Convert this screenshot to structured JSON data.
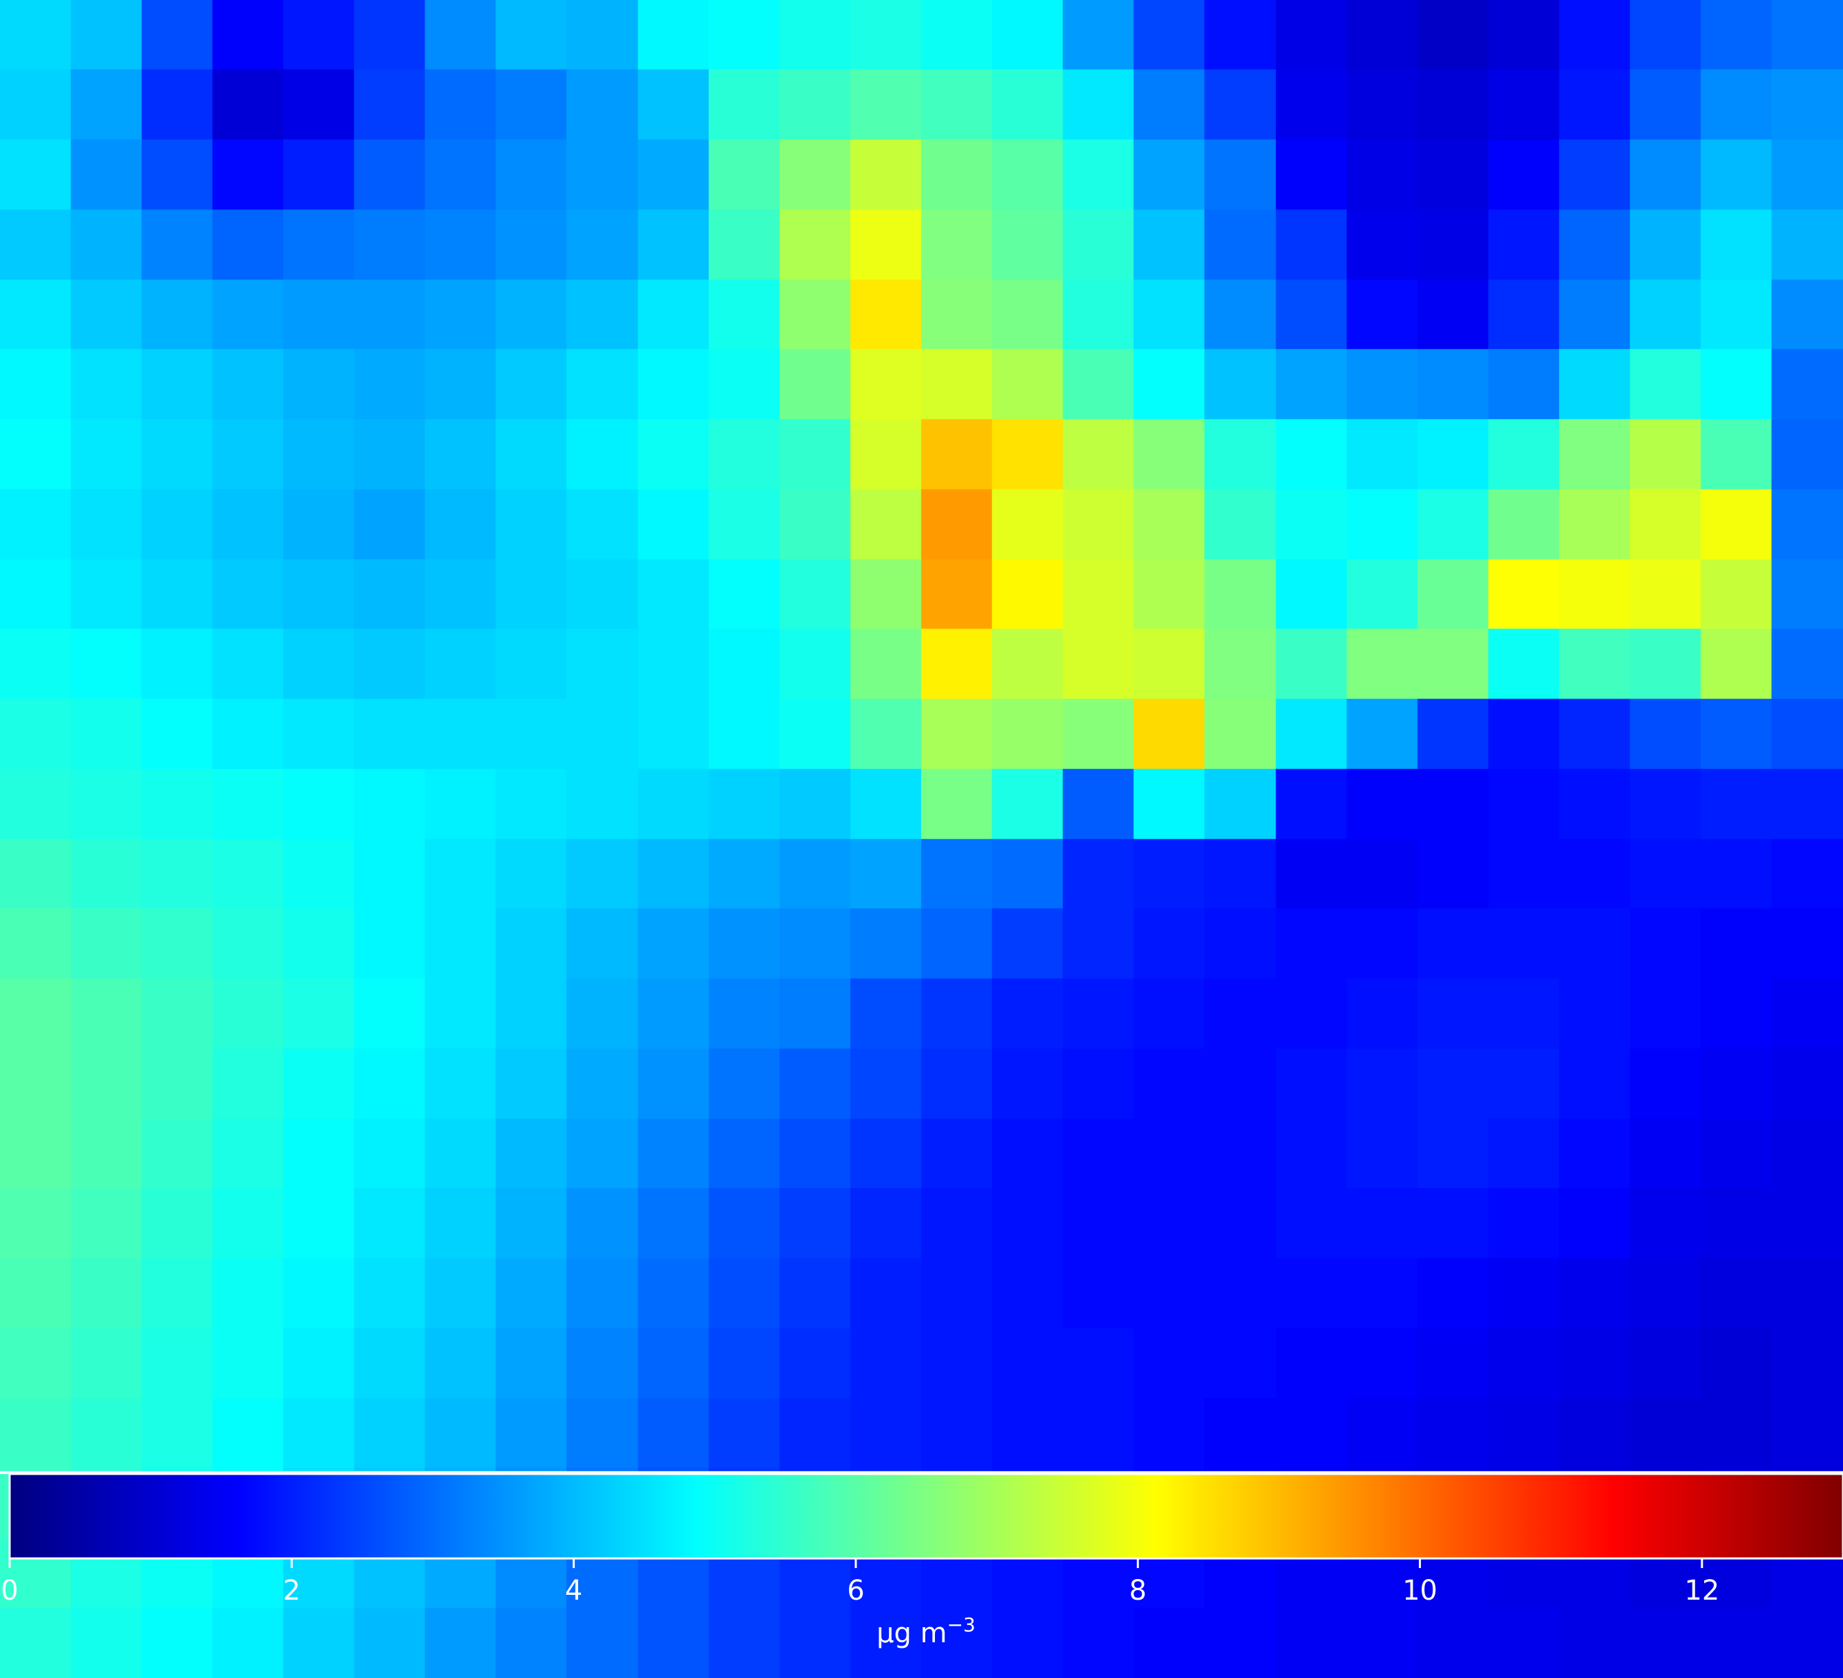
{
  "map": {
    "colormap": "jet",
    "vmin": 0,
    "vmax": 13,
    "grid_note": "grid of sampled concentration values in µg m-3, rows top to bottom",
    "grid": [
      [
        4.4,
        4.1,
        2.6,
        1.6,
        1.9,
        2.3,
        3.4,
        4.0,
        3.9,
        4.8,
        4.9,
        5.1,
        5.2,
        5.0,
        4.8,
        3.6,
        2.5,
        1.8,
        1.3,
        1.1,
        0.9,
        1.1,
        1.8,
        2.5,
        2.9,
        3.1
      ],
      [
        4.3,
        3.7,
        2.2,
        1.1,
        1.3,
        2.4,
        3.0,
        3.2,
        3.6,
        4.1,
        5.4,
        5.6,
        5.9,
        5.7,
        5.4,
        4.6,
        3.2,
        2.4,
        1.4,
        1.2,
        1.1,
        1.3,
        1.9,
        2.8,
        3.4,
        3.5
      ],
      [
        4.5,
        3.5,
        2.6,
        1.7,
        2.0,
        2.8,
        3.1,
        3.4,
        3.6,
        3.8,
        5.8,
        6.6,
        7.4,
        6.3,
        6.0,
        5.2,
        3.7,
        3.1,
        1.6,
        1.3,
        1.2,
        1.6,
        2.4,
        3.4,
        4.0,
        3.6
      ],
      [
        4.2,
        3.9,
        3.3,
        2.9,
        3.1,
        3.2,
        3.3,
        3.5,
        3.7,
        4.1,
        5.6,
        7.1,
        7.9,
        6.5,
        6.1,
        5.4,
        4.1,
        3.0,
        2.3,
        1.4,
        1.3,
        1.9,
        2.9,
        3.9,
        4.5,
        3.9
      ],
      [
        4.6,
        4.2,
        3.9,
        3.7,
        3.6,
        3.6,
        3.7,
        3.9,
        4.1,
        4.6,
        5.1,
        6.7,
        8.4,
        6.6,
        6.4,
        5.3,
        4.5,
        3.4,
        2.6,
        1.7,
        1.5,
        2.2,
        3.2,
        4.3,
        4.6,
        3.4
      ],
      [
        4.8,
        4.5,
        4.3,
        4.1,
        3.9,
        3.8,
        3.9,
        4.2,
        4.5,
        4.8,
        5.0,
        6.3,
        7.7,
        7.6,
        7.1,
        5.8,
        4.9,
        4.1,
        3.7,
        3.5,
        3.4,
        3.2,
        4.4,
        5.3,
        4.9,
        3.0
      ],
      [
        4.9,
        4.6,
        4.4,
        4.2,
        4.0,
        3.9,
        4.1,
        4.4,
        4.7,
        5.0,
        5.3,
        5.5,
        7.6,
        8.9,
        8.5,
        7.3,
        6.6,
        5.3,
        4.9,
        4.6,
        4.7,
        5.3,
        6.5,
        7.2,
        5.8,
        2.9
      ],
      [
        4.7,
        4.5,
        4.3,
        4.1,
        3.9,
        3.7,
        4.0,
        4.3,
        4.5,
        4.8,
        5.2,
        5.6,
        7.3,
        9.4,
        7.8,
        7.5,
        7.0,
        5.5,
        5.0,
        4.9,
        5.2,
        6.3,
        7.0,
        7.6,
        8.0,
        3.1
      ],
      [
        4.8,
        4.6,
        4.4,
        4.2,
        4.1,
        4.0,
        4.1,
        4.3,
        4.4,
        4.6,
        4.9,
        5.3,
        6.7,
        9.3,
        8.2,
        7.6,
        7.1,
        6.4,
        4.8,
        5.3,
        6.2,
        8.1,
        8.0,
        7.9,
        7.4,
        3.2
      ],
      [
        5.0,
        4.9,
        4.7,
        4.5,
        4.3,
        4.2,
        4.3,
        4.4,
        4.5,
        4.6,
        4.8,
        5.1,
        6.4,
        8.3,
        7.3,
        7.6,
        7.5,
        6.5,
        5.6,
        6.5,
        6.5,
        5.0,
        5.7,
        5.6,
        7.1,
        3.0
      ],
      [
        5.2,
        5.1,
        4.9,
        4.7,
        4.6,
        4.5,
        4.5,
        4.5,
        4.5,
        4.6,
        4.8,
        5.0,
        5.9,
        7.0,
        6.8,
        6.6,
        8.6,
        6.6,
        4.6,
        3.7,
        2.3,
        1.8,
        2.1,
        2.6,
        2.8,
        2.6
      ],
      [
        5.3,
        5.2,
        5.1,
        5.0,
        4.9,
        4.8,
        4.7,
        4.6,
        4.5,
        4.4,
        4.3,
        4.2,
        4.5,
        6.4,
        5.2,
        2.8,
        4.8,
        4.3,
        1.8,
        1.6,
        1.6,
        1.7,
        1.8,
        1.9,
        2.0,
        2.0
      ],
      [
        5.6,
        5.4,
        5.3,
        5.2,
        5.0,
        4.8,
        4.6,
        4.4,
        4.2,
        4.0,
        3.8,
        3.6,
        3.7,
        3.1,
        3.0,
        2.1,
        2.0,
        1.9,
        1.5,
        1.5,
        1.6,
        1.7,
        1.7,
        1.8,
        1.8,
        1.7
      ],
      [
        5.8,
        5.6,
        5.5,
        5.3,
        5.1,
        4.8,
        4.6,
        4.3,
        4.0,
        3.7,
        3.5,
        3.4,
        3.2,
        2.9,
        2.4,
        2.1,
        1.9,
        1.8,
        1.7,
        1.7,
        1.8,
        1.8,
        1.8,
        1.7,
        1.6,
        1.6
      ],
      [
        6.0,
        5.8,
        5.6,
        5.4,
        5.2,
        4.9,
        4.6,
        4.3,
        3.9,
        3.6,
        3.3,
        3.2,
        2.6,
        2.3,
        2.0,
        1.9,
        1.8,
        1.7,
        1.7,
        1.8,
        1.9,
        1.9,
        1.8,
        1.7,
        1.6,
        1.5
      ],
      [
        6.0,
        5.8,
        5.6,
        5.3,
        5.0,
        4.8,
        4.5,
        4.2,
        3.8,
        3.5,
        3.1,
        2.8,
        2.5,
        2.2,
        1.9,
        1.8,
        1.7,
        1.7,
        1.8,
        1.9,
        2.0,
        2.0,
        1.8,
        1.6,
        1.5,
        1.4
      ],
      [
        6.0,
        5.8,
        5.5,
        5.2,
        4.9,
        4.7,
        4.4,
        4.0,
        3.7,
        3.3,
        2.9,
        2.6,
        2.3,
        2.0,
        1.8,
        1.7,
        1.7,
        1.7,
        1.8,
        1.9,
        2.0,
        1.9,
        1.7,
        1.5,
        1.4,
        1.3
      ],
      [
        5.9,
        5.7,
        5.4,
        5.1,
        4.9,
        4.6,
        4.3,
        3.9,
        3.5,
        3.1,
        2.7,
        2.4,
        2.1,
        1.9,
        1.8,
        1.7,
        1.7,
        1.7,
        1.8,
        1.8,
        1.8,
        1.7,
        1.6,
        1.4,
        1.3,
        1.3
      ],
      [
        5.8,
        5.6,
        5.3,
        5.0,
        4.8,
        4.5,
        4.2,
        3.8,
        3.4,
        3.0,
        2.6,
        2.3,
        2.0,
        1.9,
        1.8,
        1.7,
        1.7,
        1.7,
        1.7,
        1.7,
        1.6,
        1.5,
        1.4,
        1.3,
        1.2,
        1.2
      ],
      [
        5.7,
        5.5,
        5.2,
        5.0,
        4.7,
        4.4,
        4.1,
        3.7,
        3.3,
        2.9,
        2.5,
        2.2,
        2.0,
        1.9,
        1.8,
        1.8,
        1.7,
        1.7,
        1.6,
        1.6,
        1.5,
        1.4,
        1.3,
        1.2,
        1.1,
        1.2
      ],
      [
        5.6,
        5.4,
        5.2,
        4.9,
        4.6,
        4.3,
        4.0,
        3.6,
        3.2,
        2.8,
        2.4,
        2.1,
        2.0,
        1.9,
        1.8,
        1.8,
        1.7,
        1.6,
        1.6,
        1.5,
        1.4,
        1.3,
        1.2,
        1.1,
        1.1,
        1.2
      ],
      [
        5.6,
        5.4,
        5.1,
        4.9,
        4.5,
        4.2,
        3.9,
        3.5,
        3.1,
        2.7,
        2.3,
        2.1,
        2.0,
        1.9,
        1.8,
        1.8,
        1.7,
        1.6,
        1.5,
        1.4,
        1.4,
        1.3,
        1.2,
        1.1,
        1.2,
        1.2
      ],
      [
        5.5,
        5.2,
        5.0,
        4.8,
        4.4,
        4.1,
        3.8,
        3.4,
        3.0,
        2.7,
        2.4,
        2.2,
        2.0,
        1.9,
        1.8,
        1.7,
        1.7,
        1.6,
        1.5,
        1.5,
        1.4,
        1.3,
        1.3,
        1.2,
        1.2,
        1.3
      ],
      [
        5.3,
        5.1,
        4.9,
        4.7,
        4.3,
        4.0,
        3.6,
        3.3,
        3.0,
        2.7,
        2.4,
        2.2,
        2.0,
        1.9,
        1.8,
        1.7,
        1.6,
        1.6,
        1.5,
        1.5,
        1.4,
        1.4,
        1.3,
        1.3,
        1.3,
        1.3
      ]
    ]
  },
  "colorbar": {
    "min": 0,
    "max": 13,
    "ticks": [
      {
        "value": 0,
        "label": "0"
      },
      {
        "value": 2,
        "label": "2"
      },
      {
        "value": 4,
        "label": "4"
      },
      {
        "value": 6,
        "label": "6"
      },
      {
        "value": 8,
        "label": "8"
      },
      {
        "value": 10,
        "label": "10"
      },
      {
        "value": 12,
        "label": "12"
      }
    ],
    "unit_main": "µg m",
    "unit_sup": "−3",
    "label_color": "#ffffff",
    "frame_color": "#ffffff"
  }
}
